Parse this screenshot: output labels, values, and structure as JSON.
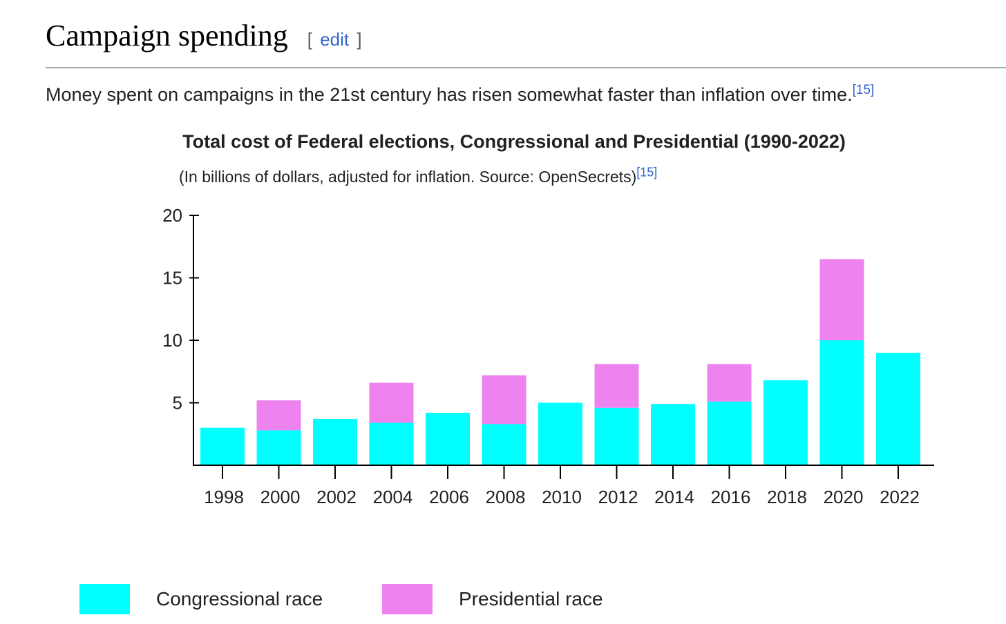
{
  "heading": {
    "title": "Campaign spending",
    "edit_open": "[",
    "edit_label": "edit",
    "edit_close": "]"
  },
  "intro": {
    "text": "Money spent on campaigns in the 21st century has risen somewhat faster than inflation over time.",
    "citation": "[15]"
  },
  "chart_data": {
    "type": "bar",
    "stacked": true,
    "title": "Total cost of Federal elections, Congressional and Presidential (1990-2022)",
    "subtitle": "(In billions of dollars, adjusted for inflation. Source: OpenSecrets)",
    "subtitle_citation": "[15]",
    "xlabel": "",
    "ylabel": "",
    "ylim": [
      0,
      20
    ],
    "yticks": [
      5,
      10,
      15,
      20
    ],
    "grid": false,
    "legend_position": "bottom",
    "categories": [
      "1998",
      "2000",
      "2002",
      "2004",
      "2006",
      "2008",
      "2010",
      "2012",
      "2014",
      "2016",
      "2018",
      "2020",
      "2022"
    ],
    "series": [
      {
        "name": "Congressional race",
        "color": "#00ffff",
        "values": [
          3.0,
          2.8,
          3.7,
          3.4,
          4.2,
          3.3,
          5.0,
          4.6,
          4.9,
          5.1,
          6.8,
          10.0,
          9.0
        ]
      },
      {
        "name": "Presidential race",
        "color": "#ee82ee",
        "values": [
          0,
          2.4,
          0,
          3.2,
          0,
          3.9,
          0,
          3.5,
          0,
          3.0,
          0,
          6.5,
          0
        ]
      }
    ]
  }
}
